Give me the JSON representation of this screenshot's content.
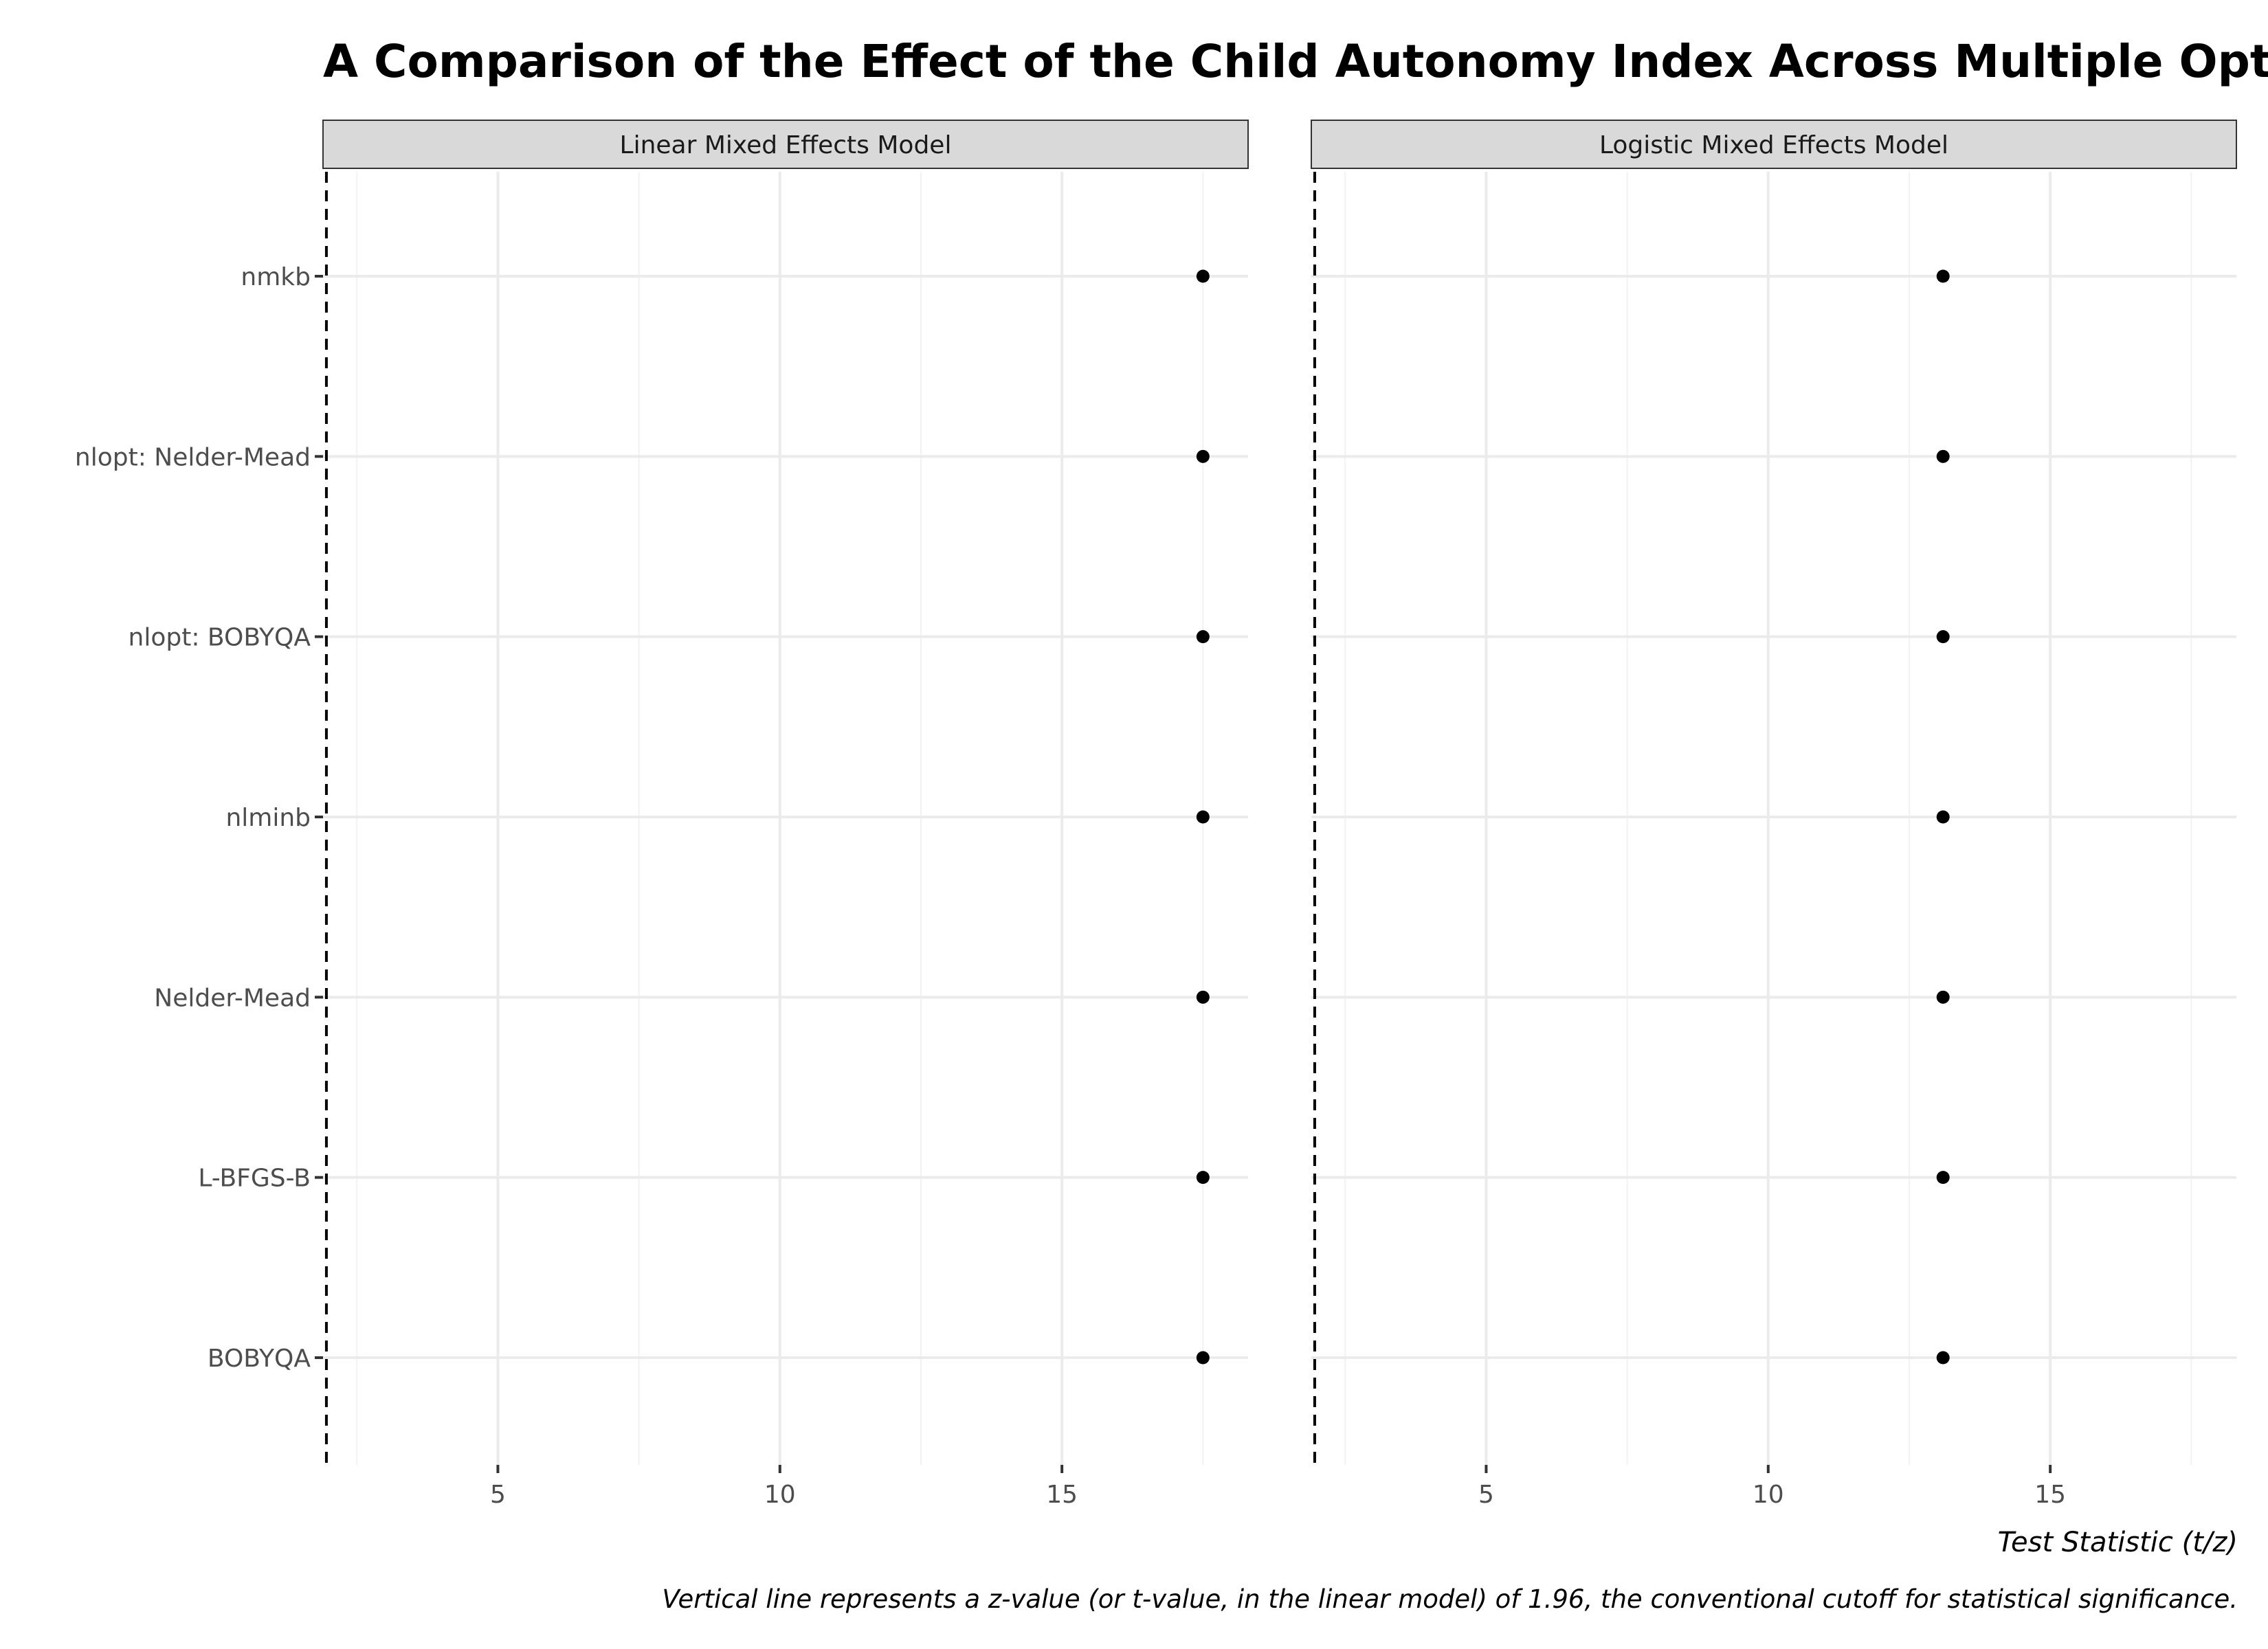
{
  "chart_data": {
    "type": "scatter",
    "title": "A Comparison of the Effect of the Child Autonomy Index Across Multiple Optimizers",
    "xlabel": "Test Statistic (t/z)",
    "ylabel": "",
    "caption": "Vertical line represents a z-value (or t-value, in the linear model) of 1.96, the conventional cutoff for statistical significance.",
    "categories": [
      "nmkb",
      "nlopt: Nelder-Mead",
      "nlopt: BOBYQA",
      "nlminb",
      "Nelder-Mead",
      "L-BFGS-B",
      "BOBYQA"
    ],
    "xlim": [
      1.9,
      18.3
    ],
    "xticks": [
      5,
      10,
      15
    ],
    "xticks_text": [
      "5",
      "10",
      "15"
    ],
    "reference_line": 1.96,
    "grid": true,
    "facets": [
      {
        "name": "Linear Mixed Effects Model",
        "values": [
          17.5,
          17.5,
          17.5,
          17.5,
          17.5,
          17.5,
          17.5
        ]
      },
      {
        "name": "Logistic Mixed Effects Model",
        "values": [
          13.1,
          13.1,
          13.1,
          13.1,
          13.1,
          13.1,
          13.1
        ]
      }
    ],
    "colors": {
      "point": "#000000",
      "strip_fill": "#d9d9d9",
      "grid_major": "#ebebeb",
      "grid_minor": "#f2f2f2",
      "reference_line": "#000000"
    }
  }
}
